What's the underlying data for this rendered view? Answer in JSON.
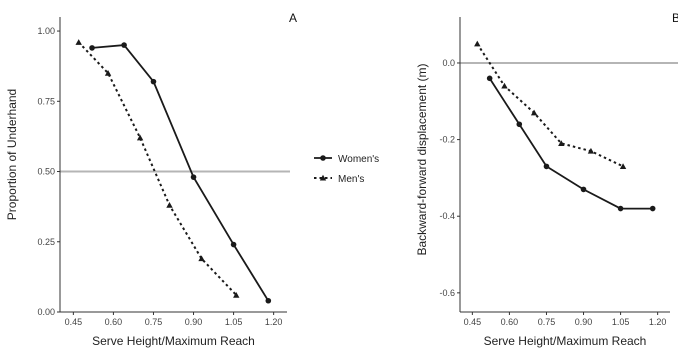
{
  "chart_data": [
    {
      "type": "line",
      "panel_label": "A",
      "xlabel": "Serve Height/Maximum Reach",
      "ylabel": "Proportion of Underhand",
      "xlim": [
        0.4,
        1.25
      ],
      "ylim": [
        0.0,
        1.05
      ],
      "xticks": [
        0.45,
        0.6,
        0.75,
        0.9,
        1.05,
        1.2
      ],
      "xtick_labels": [
        "0.45",
        "0.60",
        "0.75",
        "0.90",
        "1.05",
        "1.20"
      ],
      "yticks": [
        0.0,
        0.25,
        0.5,
        0.75,
        1.0
      ],
      "ytick_labels": [
        "0.00",
        "0.25",
        "0.50",
        "0.75",
        "1.00"
      ],
      "reference_line": 0.5,
      "grid": false,
      "series": [
        {
          "name": "Women's",
          "style": "solid",
          "x": [
            0.52,
            0.64,
            0.75,
            0.9,
            1.05,
            1.18
          ],
          "y": [
            0.94,
            0.95,
            0.82,
            0.48,
            0.24,
            0.04
          ]
        },
        {
          "name": "Men's",
          "style": "dotted",
          "x": [
            0.47,
            0.58,
            0.7,
            0.81,
            0.93,
            1.06
          ],
          "y": [
            0.96,
            0.85,
            0.62,
            0.38,
            0.19,
            0.06
          ]
        }
      ]
    },
    {
      "type": "line",
      "panel_label": "B",
      "xlabel": "Serve Height/Maximum Reach",
      "ylabel": "Backward-forward displacement (m)",
      "xlim": [
        0.4,
        1.25
      ],
      "ylim": [
        -0.65,
        0.12
      ],
      "xticks": [
        0.45,
        0.6,
        0.75,
        0.9,
        1.05,
        1.2
      ],
      "xtick_labels": [
        "0.45",
        "0.60",
        "0.75",
        "0.90",
        "1.05",
        "1.20"
      ],
      "yticks": [
        0.0,
        -0.2,
        -0.4,
        -0.6
      ],
      "ytick_labels": [
        "0.0",
        "-0.2",
        "-0.4",
        "-0.6"
      ],
      "reference_line": 0.0,
      "grid": false,
      "series": [
        {
          "name": "Women's",
          "style": "solid",
          "x": [
            0.52,
            0.64,
            0.75,
            0.9,
            1.05,
            1.18
          ],
          "y": [
            -0.04,
            -0.16,
            -0.27,
            -0.33,
            -0.38,
            -0.38
          ]
        },
        {
          "name": "Men's",
          "style": "dotted",
          "x": [
            0.47,
            0.58,
            0.7,
            0.81,
            0.93,
            1.06
          ],
          "y": [
            0.05,
            -0.06,
            -0.13,
            -0.21,
            -0.23,
            -0.27
          ]
        }
      ]
    }
  ],
  "legend": {
    "placement": "center",
    "entries": [
      {
        "label": "Women's",
        "style": "solid"
      },
      {
        "label": "Men's",
        "style": "dotted"
      }
    ]
  },
  "colors": {
    "line": "#1a1a1a",
    "reference": "#b5b5b5",
    "axis": "#333333"
  }
}
